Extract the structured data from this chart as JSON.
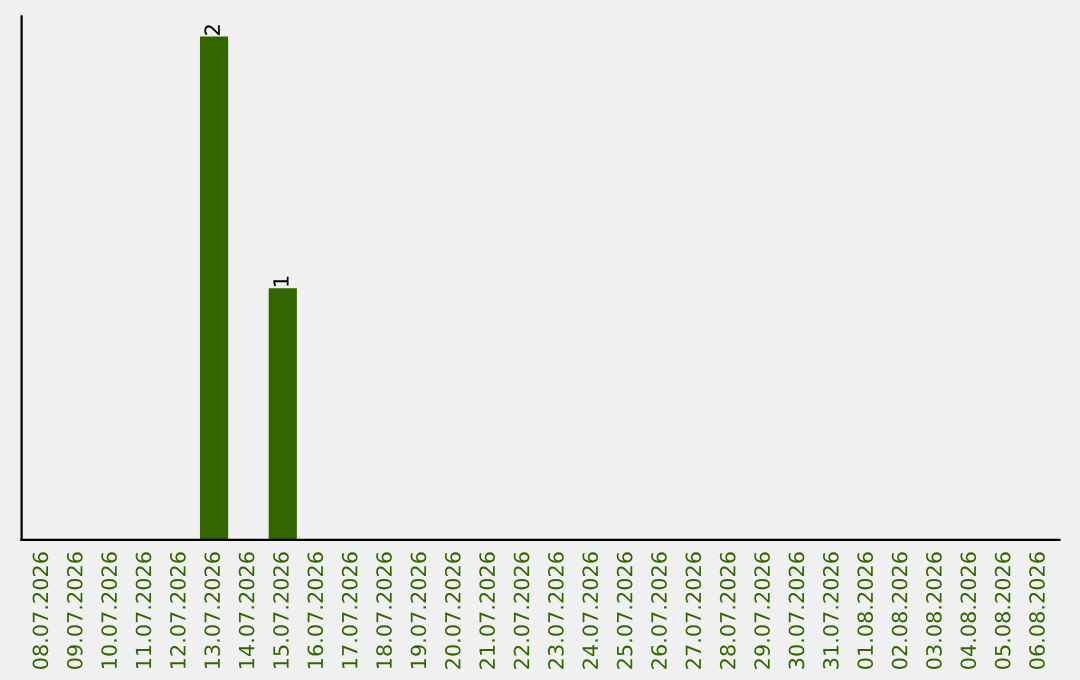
{
  "chart_data": {
    "type": "bar",
    "categories": [
      "08.07.2026",
      "09.07.2026",
      "10.07.2026",
      "11.07.2026",
      "12.07.2026",
      "13.07.2026",
      "14.07.2026",
      "15.07.2026",
      "16.07.2026",
      "17.07.2026",
      "18.07.2026",
      "19.07.2026",
      "20.07.2026",
      "21.07.2026",
      "22.07.2026",
      "23.07.2026",
      "24.07.2026",
      "25.07.2026",
      "26.07.2026",
      "27.07.2026",
      "28.07.2026",
      "29.07.2026",
      "30.07.2026",
      "31.07.2026",
      "01.08.2026",
      "02.08.2026",
      "03.08.2026",
      "04.08.2026",
      "05.08.2026",
      "06.08.2026"
    ],
    "values": [
      0,
      0,
      0,
      0,
      0,
      2,
      0,
      1,
      0,
      0,
      0,
      0,
      0,
      0,
      0,
      0,
      0,
      0,
      0,
      0,
      0,
      0,
      0,
      0,
      0,
      0,
      0,
      0,
      0,
      0
    ],
    "value_labels": [
      null,
      null,
      null,
      null,
      null,
      "2",
      null,
      "1",
      null,
      null,
      null,
      null,
      null,
      null,
      null,
      null,
      null,
      null,
      null,
      null,
      null,
      null,
      null,
      null,
      null,
      null,
      null,
      null,
      null,
      null
    ],
    "color": "#336600",
    "grid": false,
    "legend": false
  }
}
